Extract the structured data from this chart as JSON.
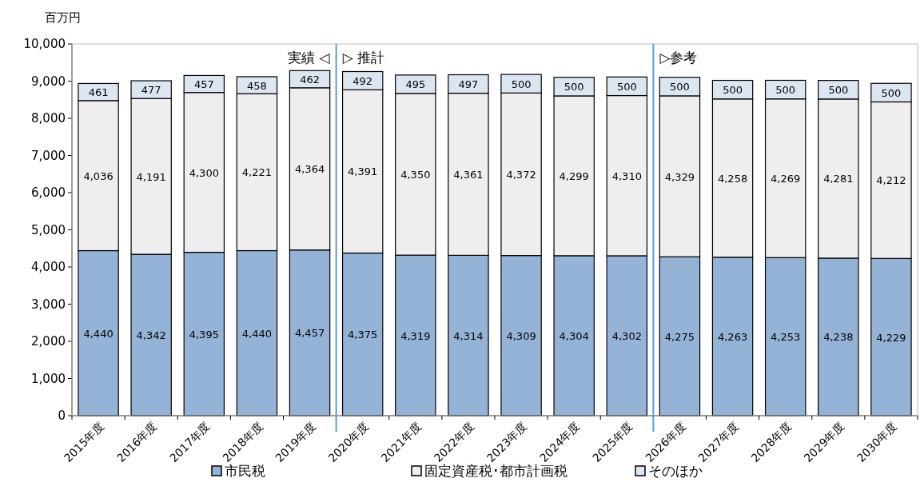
{
  "chart_data": {
    "type": "bar",
    "stacked": true,
    "ylabel": "百万円",
    "categories": [
      "2015年度",
      "2016年度",
      "2017年度",
      "2018年度",
      "2019年度",
      "2020年度",
      "2021年度",
      "2022年度",
      "2023年度",
      "2024年度",
      "2025年度",
      "2026年度",
      "2027年度",
      "2028年度",
      "2029年度",
      "2030年度"
    ],
    "series": [
      {
        "name": "市民税",
        "color": "#95b3d7",
        "values": [
          4440,
          4342,
          4395,
          4440,
          4457,
          4375,
          4319,
          4314,
          4309,
          4304,
          4302,
          4275,
          4263,
          4253,
          4238,
          4229
        ],
        "value_labels": [
          "4,440",
          "4,342",
          "4,395",
          "4,440",
          "4,457",
          "4,375",
          "4,319",
          "4,314",
          "4,309",
          "4,304",
          "4,302",
          "4,275",
          "4,263",
          "4,253",
          "4,238",
          "4,229"
        ]
      },
      {
        "name": "固定資産税･都市計画税",
        "color": "#eeeeee",
        "values": [
          4036,
          4191,
          4300,
          4221,
          4364,
          4391,
          4350,
          4361,
          4372,
          4299,
          4310,
          4329,
          4258,
          4269,
          4281,
          4212
        ],
        "value_labels": [
          "4,036",
          "4,191",
          "4,300",
          "4,221",
          "4,364",
          "4,391",
          "4,350",
          "4,361",
          "4,372",
          "4,299",
          "4,310",
          "4,329",
          "4,258",
          "4,269",
          "4,281",
          "4,212"
        ]
      },
      {
        "name": "そのほか",
        "color": "#dce6f1",
        "values": [
          461,
          477,
          457,
          458,
          462,
          492,
          495,
          497,
          500,
          500,
          500,
          500,
          500,
          500,
          500,
          500
        ],
        "value_labels": [
          "461",
          "477",
          "457",
          "458",
          "462",
          "492",
          "495",
          "497",
          "500",
          "500",
          "500",
          "500",
          "500",
          "500",
          "500",
          "500"
        ]
      }
    ],
    "ylim": [
      0,
      10000
    ],
    "yticks": [
      0,
      {
        "value": 1000,
        "label": "1,000"
      },
      {
        "value": 2000,
        "label": "2,000"
      },
      {
        "value": 3000,
        "label": "3,000"
      },
      {
        "value": 4000,
        "label": "4,000"
      },
      {
        "value": 5000,
        "label": "5,000"
      },
      {
        "value": 6000,
        "label": "6,000"
      },
      {
        "value": 7000,
        "label": "7,000"
      },
      {
        "value": 8000,
        "label": "8,000"
      },
      {
        "value": 9000,
        "label": "9,000"
      },
      {
        "value": 10000,
        "label": "10,000"
      }
    ],
    "ref_lines": [
      {
        "axis": "x",
        "value": "2020年度",
        "color": "#5b9bd5",
        "label": "▷ 推計"
      },
      {
        "axis": "x",
        "value": "2026年度",
        "color": "#5b9bd5",
        "label": "▷参考"
      }
    ],
    "annotations": [
      "実績 ◁"
    ],
    "legend": "bottom",
    "grid": false
  }
}
